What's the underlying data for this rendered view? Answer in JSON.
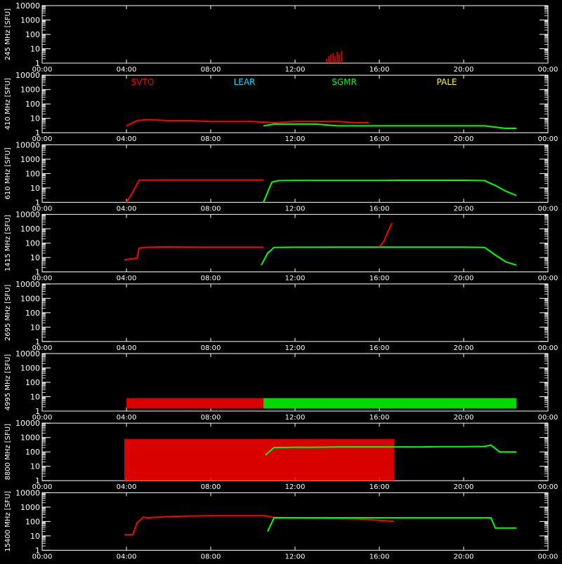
{
  "chart_data": {
    "type": "line",
    "y_scale": "log",
    "ylim": [
      1,
      10000
    ],
    "y_ticks": [
      1,
      10,
      100,
      1000,
      10000
    ],
    "y_tick_labels": [
      "1",
      "10",
      "100",
      "1000",
      "10000"
    ],
    "xlim": [
      0,
      24
    ],
    "x_ticks": [
      0,
      4,
      8,
      12,
      16,
      20,
      24
    ],
    "x_tick_labels": [
      "00:00",
      "04:00",
      "08:00",
      "12:00",
      "16:00",
      "20:00",
      "00:00"
    ],
    "legend": [
      {
        "name": "SVTO",
        "color": "#ff0000"
      },
      {
        "name": "LEAR",
        "color": "#00e0ff"
      },
      {
        "name": "SGMR",
        "color": "#00ff00"
      },
      {
        "name": "PALE",
        "color": "#ffff00"
      }
    ],
    "panels": [
      {
        "ylabel": "245 MHz [SFU]",
        "series": [
          {
            "station": "SVTO",
            "type": "scatter",
            "x": [
              13.5,
              13.6,
              13.7,
              13.8,
              13.9,
              14.0,
              14.1,
              14.2
            ],
            "y": [
              2,
              3,
              4,
              5,
              3,
              6,
              4,
              7
            ]
          }
        ]
      },
      {
        "ylabel": "410 MHz [SFU]",
        "series": [
          {
            "station": "SVTO",
            "x": [
              4.0,
              4.5,
              5.0,
              6.0,
              7.0,
              8.0,
              9.0,
              10.0,
              11.0,
              12.0,
              13.0,
              14.0,
              15.0,
              15.5
            ],
            "y": [
              3,
              7,
              8,
              7,
              7,
              6,
              6,
              6,
              5,
              6,
              6,
              6,
              5,
              5
            ]
          },
          {
            "station": "SGMR",
            "x": [
              10.5,
              11.0,
              12.0,
              13.0,
              14.0,
              15.0,
              16.0,
              17.0,
              18.0,
              19.0,
              20.0,
              21.0,
              22.0,
              22.5
            ],
            "y": [
              3,
              4,
              4,
              4,
              3,
              3,
              3,
              3,
              3,
              3,
              3,
              3,
              2,
              2
            ]
          }
        ]
      },
      {
        "ylabel": "610 MHz [SFU]",
        "series": [
          {
            "station": "SVTO",
            "x": [
              4.0,
              4.3,
              4.6,
              5.0,
              6.0,
              7.0,
              8.0,
              9.0,
              10.0,
              10.5
            ],
            "y": [
              1,
              5,
              35,
              35,
              36,
              36,
              36,
              36,
              36,
              36
            ]
          },
          {
            "station": "SGMR",
            "x": [
              10.5,
              10.7,
              10.9,
              11.2,
              12.0,
              13.0,
              14.0,
              15.0,
              16.0,
              17.0,
              18.0,
              19.0,
              20.0,
              21.0,
              21.5,
              22.0,
              22.5
            ],
            "y": [
              1,
              5,
              25,
              32,
              33,
              33,
              33,
              33,
              33,
              34,
              34,
              34,
              34,
              32,
              15,
              6,
              3
            ]
          }
        ]
      },
      {
        "ylabel": "1415 MHz [SFU]",
        "series": [
          {
            "station": "SVTO",
            "x": [
              3.9,
              4.2,
              4.5,
              4.6,
              5.0,
              6.0,
              7.0,
              8.0,
              9.0,
              10.0,
              10.5
            ],
            "y": [
              7,
              8,
              9,
              45,
              52,
              55,
              53,
              52,
              52,
              52,
              52
            ]
          },
          {
            "station": "SGMR",
            "x": [
              10.4,
              10.7,
              11.0,
              12.0,
              13.0,
              14.0,
              15.0,
              16.0,
              17.0,
              18.0,
              19.0,
              20.0,
              21.0,
              21.5,
              22.0,
              22.5
            ],
            "y": [
              3,
              20,
              50,
              52,
              52,
              53,
              53,
              53,
              53,
              53,
              53,
              53,
              50,
              15,
              5,
              3
            ]
          },
          {
            "station": "SVTO",
            "x": [
              16.0,
              16.2,
              16.4,
              16.6
            ],
            "y": [
              55,
              120,
              600,
              2500
            ]
          }
        ]
      },
      {
        "ylabel": "2695 MHz [SFU]",
        "series": []
      },
      {
        "ylabel": "4995 MHz [SFU]",
        "series": [
          {
            "station": "SVTO",
            "type": "band",
            "x": [
              4.0,
              10.5
            ],
            "y": [
              1.5,
              8
            ]
          },
          {
            "station": "SGMR",
            "type": "band",
            "x": [
              10.5,
              22.5
            ],
            "y": [
              1.5,
              8
            ]
          }
        ]
      },
      {
        "ylabel": "8800 MHz [SFU]",
        "series": [
          {
            "station": "SVTO",
            "type": "band",
            "x": [
              3.9,
              16.7
            ],
            "y": [
              1,
              800
            ]
          },
          {
            "station": "SGMR",
            "x": [
              10.6,
              11.0,
              12.0,
              13.0,
              14.0,
              15.0,
              16.0,
              17.0,
              18.0,
              19.0,
              20.0,
              21.0,
              21.3,
              21.7,
              22.5
            ],
            "y": [
              60,
              200,
              210,
              210,
              220,
              220,
              220,
              220,
              220,
              230,
              230,
              240,
              300,
              100,
              100
            ]
          }
        ]
      },
      {
        "ylabel": "15400 MHz [SFU]",
        "series": [
          {
            "station": "SVTO",
            "x": [
              3.9,
              4.3,
              4.5,
              4.8,
              5.0,
              6.0,
              7.0,
              8.0,
              9.0,
              10.0,
              10.6,
              11.0,
              12.0,
              13.0,
              14.0,
              15.0,
              16.0,
              16.7
            ],
            "y": [
              12,
              12,
              80,
              200,
              180,
              220,
              240,
              250,
              250,
              250,
              250,
              190,
              180,
              170,
              160,
              150,
              120,
              100
            ]
          },
          {
            "station": "SGMR",
            "x": [
              10.7,
              11.0,
              12.0,
              13.0,
              14.0,
              15.0,
              16.0,
              17.0,
              18.0,
              19.0,
              20.0,
              21.0,
              21.3,
              21.5,
              22.5
            ],
            "y": [
              20,
              180,
              180,
              180,
              180,
              180,
              180,
              180,
              180,
              180,
              180,
              180,
              180,
              35,
              35
            ]
          }
        ]
      }
    ]
  }
}
